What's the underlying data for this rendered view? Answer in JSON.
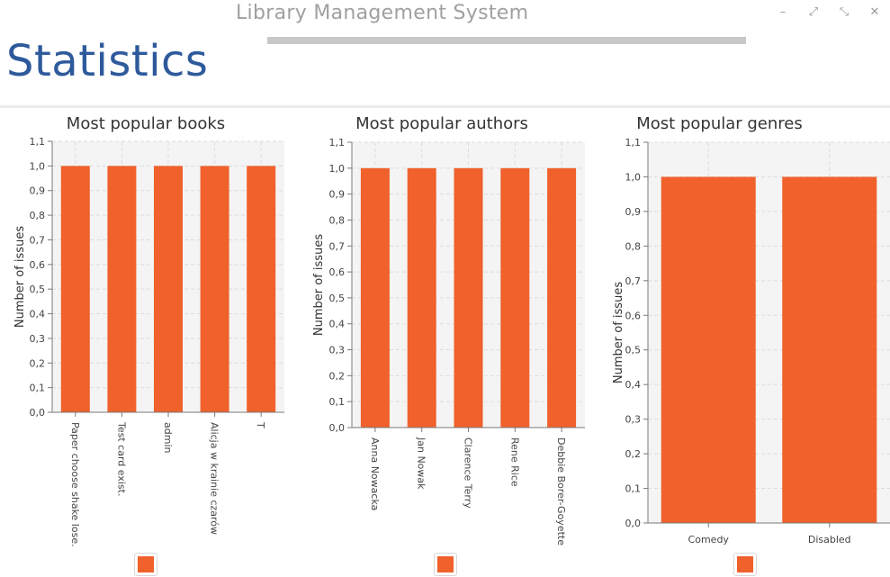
{
  "window": {
    "title": "Library Management System",
    "controls": [
      {
        "name": "minimize-icon",
        "glyph": "–"
      },
      {
        "name": "maximize-icon",
        "glyph": "⤢"
      },
      {
        "name": "restore-icon",
        "glyph": "⤡"
      },
      {
        "name": "close-icon",
        "glyph": "✕"
      }
    ]
  },
  "page": {
    "heading": "Statistics"
  },
  "colors": {
    "bar": "#f0612c",
    "plot_bg": "#f4f4f4",
    "grid": "#dcdcdc",
    "axis": "#7a7a7a",
    "heading": "#2e5a9c"
  },
  "chart_data": [
    {
      "type": "bar",
      "title": "Most popular books",
      "ylabel": "Number of issues",
      "xlabel": "",
      "categories": [
        "Paper choose shake lose.",
        "Test card exist.",
        "admin",
        "Alicja w krainie czarów",
        "T"
      ],
      "values": [
        1.0,
        1.0,
        1.0,
        1.0,
        1.0
      ],
      "ylim": [
        0,
        1.1
      ],
      "yticks": [
        "0,0",
        "0,1",
        "0,2",
        "0,3",
        "0,4",
        "0,5",
        "0,6",
        "0,7",
        "0,8",
        "0,9",
        "1,0",
        "1,1"
      ],
      "grid": true,
      "legend": "bottom"
    },
    {
      "type": "bar",
      "title": "Most popular authors",
      "ylabel": "Number of issues",
      "xlabel": "",
      "categories": [
        "Anna Nowacka",
        "Jan Nowak",
        "Clarence Terry",
        "Rene Rice",
        "Debbie Borer-Goyette"
      ],
      "values": [
        1.0,
        1.0,
        1.0,
        1.0,
        1.0
      ],
      "ylim": [
        0,
        1.1
      ],
      "yticks": [
        "0,0",
        "0,1",
        "0,2",
        "0,3",
        "0,4",
        "0,5",
        "0,6",
        "0,7",
        "0,8",
        "0,9",
        "1,0",
        "1,1"
      ],
      "grid": true,
      "legend": "bottom"
    },
    {
      "type": "bar",
      "title": "Most popular genres",
      "ylabel": "Number of issues",
      "xlabel": "",
      "categories": [
        "Comedy",
        "Disabled"
      ],
      "values": [
        1.0,
        1.0
      ],
      "ylim": [
        0,
        1.1
      ],
      "yticks": [
        "0,0",
        "0,1",
        "0,2",
        "0,3",
        "0,4",
        "0,5",
        "0,6",
        "0,7",
        "0,8",
        "0,9",
        "1,0",
        "1,1"
      ],
      "grid": true,
      "legend": "bottom"
    }
  ]
}
